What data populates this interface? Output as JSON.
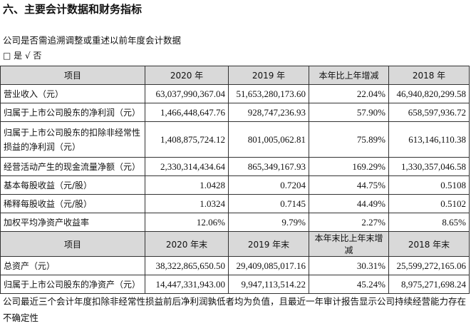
{
  "header": {
    "title": "六、主要会计数据和财务指标",
    "question": "公司是否需追溯调整或重述以前年度会计数据",
    "answer": "□ 是 √ 否"
  },
  "table": {
    "sections": [
      {
        "header": [
          "项目",
          "2020 年",
          "2019 年",
          "本年比上年增减",
          "2018 年"
        ],
        "rows": [
          [
            "营业收入（元）",
            "63,037,990,367.04",
            "51,653,280,173.60",
            "22.04%",
            "46,940,820,299.58"
          ],
          [
            "归属于上市公司股东的净利润（元）",
            "1,466,448,647.76",
            "928,747,236.93",
            "57.90%",
            "658,597,936.72"
          ],
          [
            "归属于上市公司股东的扣除非经常性损益的净利润（元）",
            "1,408,875,724.12",
            "801,005,062.81",
            "75.89%",
            "613,146,110.38"
          ],
          [
            "经营活动产生的现金流量净额（元）",
            "2,330,314,434.64",
            "865,349,167.93",
            "169.29%",
            "1,330,357,046.58"
          ],
          [
            "基本每股收益（元/股）",
            "1.0428",
            "0.7204",
            "44.75%",
            "0.5108"
          ],
          [
            "稀释每股收益（元/股）",
            "1.0324",
            "0.7145",
            "44.49%",
            "0.5102"
          ],
          [
            "加权平均净资产收益率",
            "12.06%",
            "9.79%",
            "2.27%",
            "8.65%"
          ]
        ]
      },
      {
        "header": [
          "项目",
          "2020 年末",
          "2019 年末",
          "本年末比上年末增减",
          "2018 年末"
        ],
        "rows": [
          [
            "总资产（元）",
            "38,322,865,650.50",
            "29,409,085,017.16",
            "30.31%",
            "25,599,272,165.06"
          ],
          [
            "归属于上市公司股东的净资产（元）",
            "14,447,331,943.00",
            "9,947,113,514.22",
            "45.24%",
            "8,975,271,698.24"
          ]
        ]
      }
    ]
  },
  "footnote": "公司最近三个会计年度扣除非经常性损益前后净利润孰低者均为负值，且最近一年审计报告显示公司持续经营能力存在不确定性"
}
